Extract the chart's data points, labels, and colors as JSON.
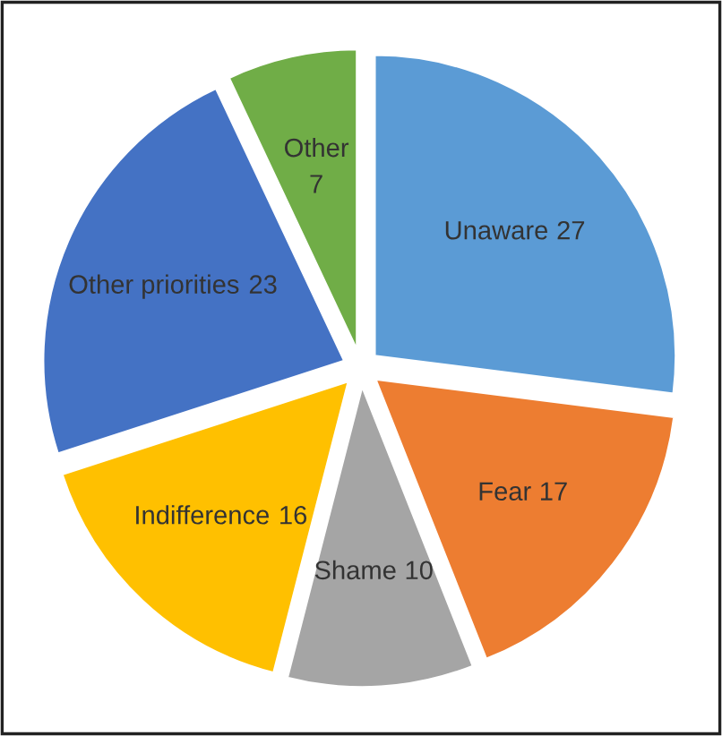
{
  "chart_data": {
    "type": "pie",
    "categories": [
      "Unaware",
      "Fear",
      "Shame",
      "Indifference",
      "Other priorities",
      "Other"
    ],
    "values": [
      27,
      17,
      10,
      16,
      23,
      7
    ],
    "colors": [
      "#5b9bd5",
      "#ed7d31",
      "#a5a5a5",
      "#ffc000",
      "#4472c4",
      "#70ad47"
    ],
    "data_labels": true,
    "legend": false
  }
}
